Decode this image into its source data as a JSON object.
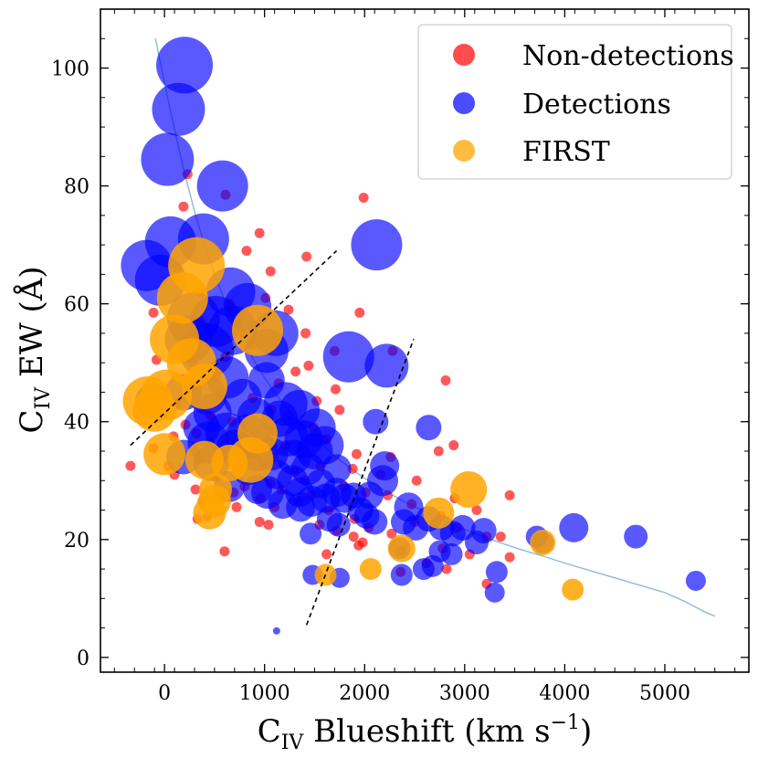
{
  "chart_data": {
    "type": "scatter",
    "xlabel": {
      "main": "C",
      "sub": "IV",
      "rest": " Blueshift (km s",
      "sup": "−1",
      "close": ")"
    },
    "ylabel": {
      "main": "C",
      "sub": "IV",
      "rest": " EW (Å)"
    },
    "xlim": [
      -640,
      5840
    ],
    "ylim": [
      -2.5,
      110
    ],
    "xticks": [
      0,
      1000,
      2000,
      3000,
      4000,
      5000
    ],
    "xtick_labels": [
      "0",
      "1000",
      "2000",
      "3000",
      "4000",
      "5000"
    ],
    "yticks": [
      0,
      20,
      40,
      60,
      80,
      100
    ],
    "ytick_labels": [
      "0",
      "20",
      "40",
      "60",
      "80",
      "100"
    ],
    "grid": false,
    "legend_position": "top-right",
    "legend": [
      {
        "label": "Non-detections",
        "color": "#ff0000"
      },
      {
        "label": "Detections",
        "color": "#0000ff"
      },
      {
        "label": "FIRST",
        "color": "#ffa500"
      }
    ],
    "series": [
      {
        "name": "Non-detections",
        "color": "#ff0000",
        "opacity": 0.65,
        "points": [
          [
            -340,
            32.5
          ],
          [
            230,
            82
          ],
          [
            190,
            76.5
          ],
          [
            610,
            78.5
          ],
          [
            1990,
            78
          ],
          [
            950,
            72
          ],
          [
            820,
            69
          ],
          [
            1420,
            68
          ],
          [
            130,
            66
          ],
          [
            1060,
            65.5
          ],
          [
            360,
            62
          ],
          [
            1010,
            61
          ],
          [
            650,
            60
          ],
          [
            1240,
            59
          ],
          [
            -110,
            58.5
          ],
          [
            1950,
            58.5
          ],
          [
            360,
            57
          ],
          [
            430,
            56
          ],
          [
            780,
            55
          ],
          [
            1410,
            55
          ],
          [
            880,
            53
          ],
          [
            1700,
            52
          ],
          [
            2280,
            52
          ],
          [
            610,
            51
          ],
          [
            -80,
            50.5
          ],
          [
            280,
            50
          ],
          [
            1440,
            49.5
          ],
          [
            1310,
            48.5
          ],
          [
            510,
            47.5
          ],
          [
            2810,
            47
          ],
          [
            1140,
            46.5
          ],
          [
            260,
            45.5
          ],
          [
            1710,
            45.5
          ],
          [
            -20,
            45
          ],
          [
            560,
            44.5
          ],
          [
            210,
            44
          ],
          [
            880,
            44
          ],
          [
            1520,
            43.5
          ],
          [
            120,
            43
          ],
          [
            1070,
            42
          ],
          [
            1750,
            42
          ],
          [
            460,
            41
          ],
          [
            1240,
            41
          ],
          [
            680,
            40
          ],
          [
            210,
            39.5
          ],
          [
            1490,
            39
          ],
          [
            1050,
            38.5
          ],
          [
            320,
            38
          ],
          [
            90,
            37.5
          ],
          [
            810,
            37
          ],
          [
            1620,
            37
          ],
          [
            450,
            36.5
          ],
          [
            1210,
            36
          ],
          [
            2890,
            36
          ],
          [
            -110,
            35.5
          ],
          [
            760,
            35.5
          ],
          [
            1380,
            35
          ],
          [
            2740,
            35
          ],
          [
            1920,
            34.5
          ],
          [
            590,
            34
          ],
          [
            1090,
            34
          ],
          [
            2260,
            34
          ],
          [
            350,
            33.5
          ],
          [
            1000,
            33
          ],
          [
            40,
            32.5
          ],
          [
            1560,
            32.5
          ],
          [
            730,
            32
          ],
          [
            1880,
            32
          ],
          [
            1300,
            31.5
          ],
          [
            100,
            31
          ],
          [
            2160,
            31
          ],
          [
            520,
            30.5
          ],
          [
            1400,
            30
          ],
          [
            2520,
            30
          ],
          [
            1060,
            29.5
          ],
          [
            800,
            29
          ],
          [
            1790,
            29
          ],
          [
            310,
            28.5
          ],
          [
            1170,
            28.5
          ],
          [
            690,
            28
          ],
          [
            2010,
            28
          ],
          [
            1470,
            27.5
          ],
          [
            2230,
            27.5
          ],
          [
            3450,
            27.5
          ],
          [
            580,
            27
          ],
          [
            960,
            27
          ],
          [
            2900,
            27
          ],
          [
            380,
            26.5
          ],
          [
            1340,
            26.5
          ],
          [
            2470,
            26
          ],
          [
            720,
            25.5
          ],
          [
            1100,
            25.5
          ],
          [
            1640,
            25
          ],
          [
            3120,
            25
          ],
          [
            2760,
            24
          ],
          [
            430,
            24
          ],
          [
            1900,
            23.5
          ],
          [
            950,
            23
          ],
          [
            2500,
            23
          ],
          [
            330,
            23.5
          ],
          [
            1550,
            22.5
          ],
          [
            1040,
            22.5
          ],
          [
            2040,
            22
          ],
          [
            2920,
            22
          ],
          [
            1720,
            21.5
          ],
          [
            2270,
            21
          ],
          [
            1890,
            20.5
          ],
          [
            3220,
            20.5
          ],
          [
            3360,
            20.5
          ],
          [
            1980,
            19.5
          ],
          [
            1940,
            19
          ],
          [
            2780,
            18.5
          ],
          [
            2360,
            18
          ],
          [
            600,
            18
          ],
          [
            3050,
            17.5
          ],
          [
            1620,
            17.5
          ],
          [
            3450,
            17
          ],
          [
            2620,
            16
          ],
          [
            2820,
            15
          ],
          [
            2360,
            14.5
          ],
          [
            3220,
            12.5
          ]
        ]
      },
      {
        "name": "Detections",
        "color": "#0000ff",
        "opacity": 0.65,
        "points": [
          [
            200,
            100.5,
            31
          ],
          [
            140,
            93,
            29
          ],
          [
            30,
            84.5,
            29
          ],
          [
            580,
            80,
            28
          ],
          [
            60,
            70.5,
            28
          ],
          [
            390,
            71,
            28
          ],
          [
            2120,
            70,
            28
          ],
          [
            -180,
            66.5,
            28
          ],
          [
            -40,
            64,
            28
          ],
          [
            660,
            62,
            27
          ],
          [
            830,
            59.5,
            26
          ],
          [
            290,
            57.5,
            29
          ],
          [
            510,
            57,
            28
          ],
          [
            680,
            55.5,
            27
          ],
          [
            1110,
            55,
            25
          ],
          [
            240,
            54,
            26
          ],
          [
            1840,
            51,
            28
          ],
          [
            420,
            52,
            30
          ],
          [
            1020,
            52,
            24
          ],
          [
            2220,
            49.5,
            24
          ],
          [
            630,
            47.5,
            23
          ],
          [
            1020,
            47,
            20
          ],
          [
            190,
            45,
            20
          ],
          [
            430,
            44.5,
            21
          ],
          [
            780,
            44,
            21
          ],
          [
            -120,
            43.5,
            19
          ],
          [
            1210,
            43,
            24
          ],
          [
            1350,
            42,
            22
          ],
          [
            480,
            41.5,
            21
          ],
          [
            910,
            41,
            20
          ],
          [
            1150,
            40.5,
            20
          ],
          [
            2110,
            40,
            14
          ],
          [
            370,
            39,
            20
          ],
          [
            1520,
            39,
            21
          ],
          [
            620,
            38,
            23
          ],
          [
            830,
            37.5,
            24
          ],
          [
            1230,
            37.5,
            22
          ],
          [
            1390,
            37,
            21
          ],
          [
            440,
            36.5,
            23
          ],
          [
            1600,
            36,
            21
          ],
          [
            700,
            35.5,
            20
          ],
          [
            930,
            35,
            22
          ],
          [
            1500,
            35,
            20
          ],
          [
            2640,
            39,
            14
          ],
          [
            1070,
            34.5,
            18
          ],
          [
            1290,
            34,
            19
          ],
          [
            190,
            34,
            19
          ],
          [
            470,
            33,
            20
          ],
          [
            2200,
            32.5,
            16
          ],
          [
            1720,
            32,
            16
          ],
          [
            840,
            32,
            18
          ],
          [
            1430,
            32,
            18
          ],
          [
            1130,
            31,
            16
          ],
          [
            1280,
            30,
            17
          ],
          [
            2180,
            30,
            17
          ],
          [
            1560,
            29.5,
            16
          ],
          [
            650,
            29,
            17
          ],
          [
            930,
            28.5,
            16
          ],
          [
            1720,
            28,
            16
          ],
          [
            1030,
            28,
            18
          ],
          [
            1350,
            28,
            16
          ],
          [
            2050,
            27.5,
            15
          ],
          [
            1890,
            27.5,
            14
          ],
          [
            1800,
            27,
            16
          ],
          [
            1610,
            27,
            16
          ],
          [
            1470,
            26.5,
            17
          ],
          [
            1180,
            26,
            16
          ],
          [
            1360,
            25.5,
            16
          ],
          [
            2440,
            25.5,
            16
          ],
          [
            1960,
            25,
            14
          ],
          [
            2020,
            24,
            14
          ],
          [
            1650,
            23.5,
            14
          ],
          [
            2100,
            23,
            14
          ],
          [
            2390,
            23,
            14
          ],
          [
            2640,
            23.5,
            14
          ],
          [
            1740,
            22.5,
            13
          ],
          [
            2510,
            22,
            14
          ],
          [
            4090,
            22,
            16
          ],
          [
            2770,
            22,
            14
          ],
          [
            2980,
            22,
            14
          ],
          [
            3190,
            21.5,
            14
          ],
          [
            2880,
            21,
            14
          ],
          [
            1460,
            21,
            12
          ],
          [
            4710,
            20.5,
            13
          ],
          [
            3720,
            20.5,
            12
          ],
          [
            3780,
            19.5,
            12
          ],
          [
            3120,
            19.5,
            13
          ],
          [
            2350,
            18.5,
            12
          ],
          [
            2750,
            18,
            12
          ],
          [
            2870,
            17.5,
            12
          ],
          [
            2590,
            15,
            12
          ],
          [
            2680,
            15.5,
            12
          ],
          [
            3320,
            14.5,
            12
          ],
          [
            1480,
            14,
            11
          ],
          [
            2370,
            14,
            12
          ],
          [
            1750,
            13.5,
            11
          ],
          [
            5310,
            13,
            11
          ],
          [
            3300,
            11,
            11
          ],
          [
            1120,
            4.5,
            4
          ]
        ]
      },
      {
        "name": "FIRST",
        "color": "#ffa500",
        "opacity": 0.85,
        "points": [
          [
            320,
            66.5,
            31
          ],
          [
            180,
            61,
            28
          ],
          [
            930,
            55.5,
            28
          ],
          [
            100,
            54,
            27
          ],
          [
            270,
            50,
            27
          ],
          [
            400,
            46,
            25
          ],
          [
            20,
            44.5,
            28
          ],
          [
            -170,
            43.5,
            27
          ],
          [
            -100,
            42,
            24
          ],
          [
            930,
            38,
            22
          ],
          [
            0,
            34.5,
            23
          ],
          [
            400,
            33.5,
            21
          ],
          [
            650,
            33,
            20
          ],
          [
            860,
            33.5,
            25
          ],
          [
            510,
            28.5,
            18
          ],
          [
            500,
            26.5,
            18
          ],
          [
            450,
            24.5,
            18
          ],
          [
            3040,
            28.5,
            20
          ],
          [
            2740,
            24.5,
            17
          ],
          [
            2370,
            18.5,
            15
          ],
          [
            3780,
            19.5,
            14
          ],
          [
            1610,
            14,
            12
          ],
          [
            2060,
            15,
            12
          ],
          [
            4080,
            11.5,
            12
          ]
        ]
      }
    ],
    "fit_curve": {
      "color": "#8fb9d8",
      "x_start": -90,
      "x_end": 5500,
      "x": [
        -90,
        0,
        100,
        200,
        300,
        400,
        500,
        600,
        700,
        800,
        900,
        1000,
        1100,
        1200,
        1300,
        1400,
        1500,
        1600,
        1700,
        1800,
        1900,
        2000,
        2200,
        2400,
        2600,
        2800,
        3000,
        3200,
        3400,
        3600,
        3800,
        4000,
        4200,
        4400,
        4600,
        4800,
        5000,
        5200,
        5400,
        5500
      ],
      "y": [
        105,
        97.5,
        89.6,
        82.2,
        75.7,
        70.0,
        65.0,
        60.6,
        56.7,
        53.3,
        50.2,
        47.5,
        45.0,
        42.8,
        40.8,
        38.9,
        37.2,
        35.7,
        34.2,
        32.9,
        31.6,
        30.4,
        28.3,
        26.4,
        24.7,
        23.1,
        21.7,
        20.4,
        19.2,
        18.1,
        17.1,
        16.0,
        15.0,
        14.0,
        13.0,
        12.0,
        11.0,
        9.5,
        7.7,
        7.0
      ]
    },
    "dashed_lines": [
      {
        "color": "#000000",
        "points": [
          [
            -340,
            36
          ],
          [
            1720,
            69
          ]
        ]
      },
      {
        "color": "#000000",
        "points": [
          [
            1420,
            5.5
          ],
          [
            2490,
            54
          ]
        ]
      }
    ]
  }
}
